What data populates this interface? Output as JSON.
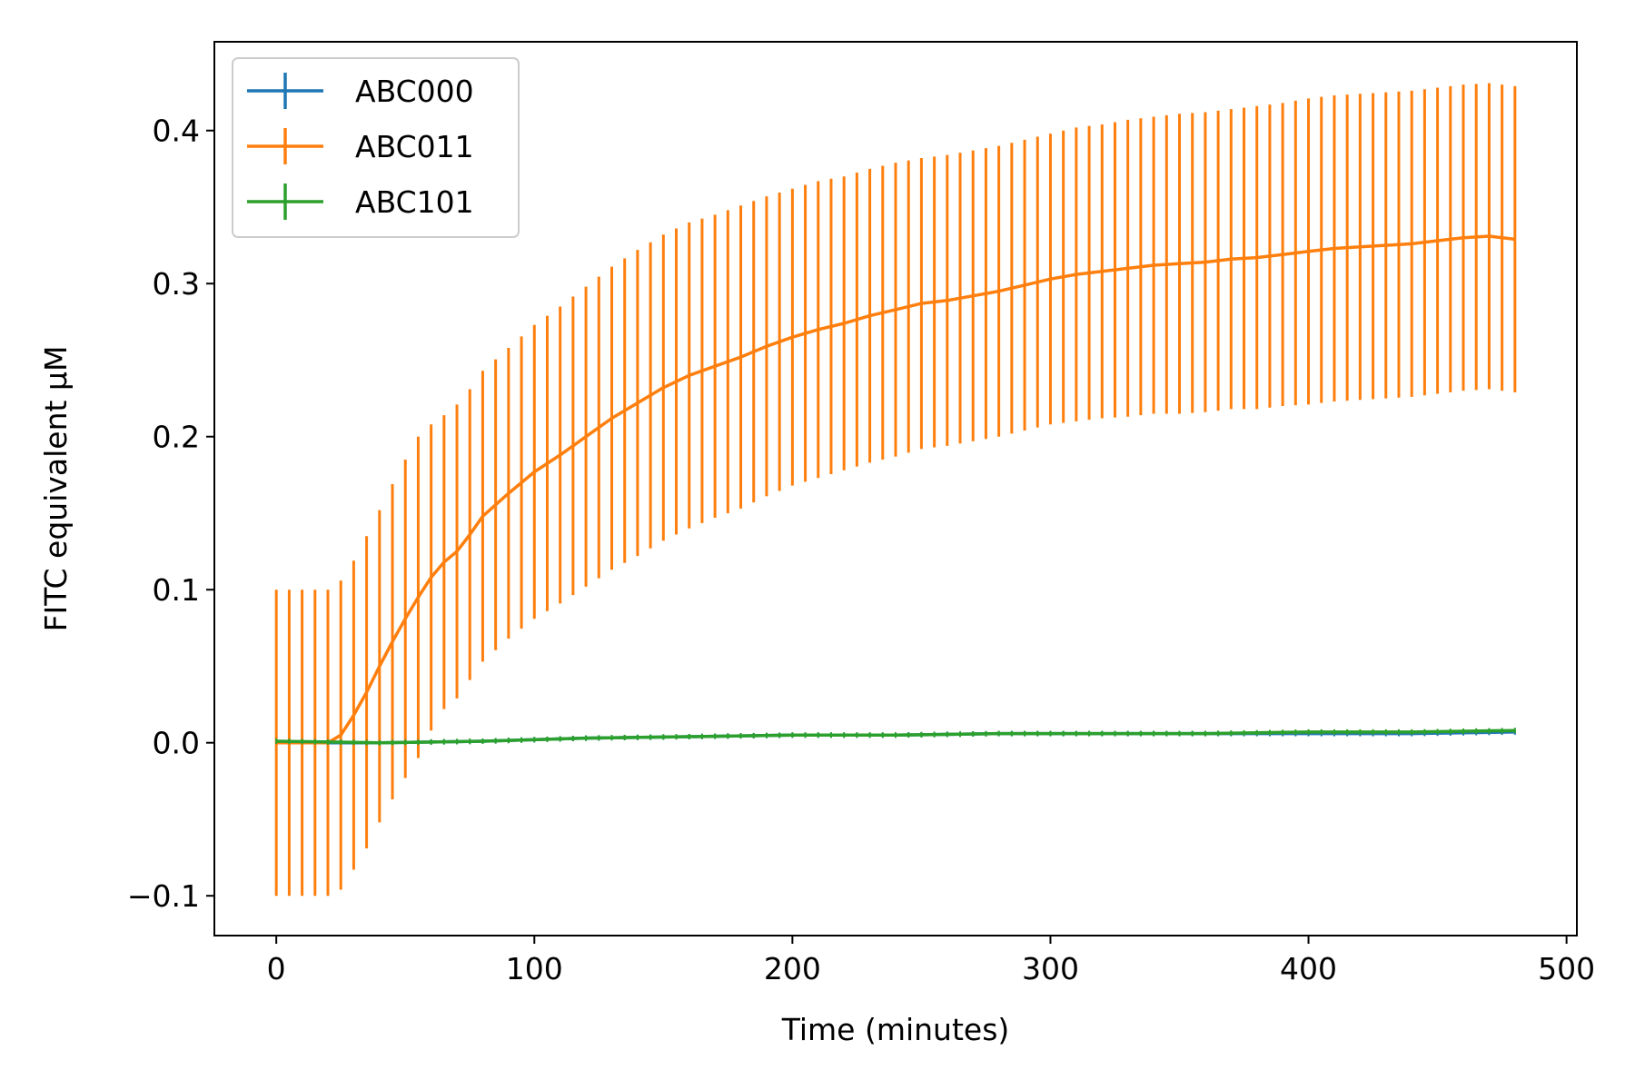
{
  "chart_data": {
    "type": "line",
    "title": "",
    "xlabel": "Time (minutes)",
    "ylabel": "FITC equivalent μM",
    "xlim": [
      -24,
      504
    ],
    "ylim": [
      -0.126,
      0.458
    ],
    "xticks": [
      0,
      100,
      200,
      300,
      400,
      500
    ],
    "yticks": [
      -0.1,
      0.0,
      0.1,
      0.2,
      0.3,
      0.4
    ],
    "xtick_labels": [
      "0",
      "100",
      "200",
      "300",
      "400",
      "500"
    ],
    "ytick_labels": [
      "−0.1",
      "0.0",
      "0.1",
      "0.2",
      "0.3",
      "0.4"
    ],
    "grid": false,
    "legend_position": "upper-left",
    "error_bars": true,
    "series": [
      {
        "name": "ABC000",
        "color": "#1f77b4",
        "x": [
          0,
          40,
          80,
          120,
          160,
          200,
          240,
          280,
          320,
          360,
          400,
          440,
          480
        ],
        "y": [
          0.0,
          0.0,
          0.001,
          0.003,
          0.004,
          0.005,
          0.005,
          0.006,
          0.006,
          0.006,
          0.006,
          0.006,
          0.007
        ]
      },
      {
        "name": "ABC011",
        "color": "#ff7f0e",
        "x": [
          0,
          10,
          20,
          25,
          30,
          35,
          40,
          45,
          50,
          55,
          60,
          65,
          70,
          75,
          80,
          90,
          100,
          110,
          120,
          130,
          140,
          150,
          160,
          170,
          180,
          190,
          200,
          210,
          220,
          230,
          240,
          250,
          260,
          270,
          280,
          290,
          300,
          310,
          320,
          330,
          340,
          350,
          360,
          370,
          380,
          390,
          400,
          410,
          420,
          430,
          440,
          450,
          460,
          470,
          480
        ],
        "y": [
          0.0,
          0.0,
          0.0,
          0.005,
          0.018,
          0.033,
          0.05,
          0.066,
          0.081,
          0.095,
          0.108,
          0.118,
          0.125,
          0.136,
          0.148,
          0.163,
          0.177,
          0.188,
          0.2,
          0.212,
          0.222,
          0.232,
          0.24,
          0.246,
          0.252,
          0.259,
          0.265,
          0.27,
          0.274,
          0.279,
          0.283,
          0.287,
          0.289,
          0.292,
          0.295,
          0.299,
          0.303,
          0.306,
          0.308,
          0.31,
          0.312,
          0.313,
          0.314,
          0.316,
          0.317,
          0.319,
          0.321,
          0.323,
          0.324,
          0.325,
          0.326,
          0.328,
          0.33,
          0.331,
          0.329
        ],
        "error": [
          0.1,
          0.1,
          0.1,
          0.101,
          0.101,
          0.102,
          0.102,
          0.103,
          0.104,
          0.105,
          0.1,
          0.096,
          0.096,
          0.095,
          0.095,
          0.095,
          0.096,
          0.097,
          0.098,
          0.099,
          0.1,
          0.1,
          0.1,
          0.099,
          0.099,
          0.098,
          0.097,
          0.097,
          0.096,
          0.096,
          0.096,
          0.095,
          0.095,
          0.095,
          0.095,
          0.095,
          0.095,
          0.096,
          0.096,
          0.097,
          0.097,
          0.098,
          0.098,
          0.098,
          0.099,
          0.099,
          0.1,
          0.1,
          0.1,
          0.1,
          0.1,
          0.1,
          0.1,
          0.1,
          0.1
        ]
      },
      {
        "name": "ABC101",
        "color": "#2ca02c",
        "x": [
          0,
          40,
          80,
          120,
          160,
          200,
          240,
          280,
          320,
          360,
          400,
          440,
          480
        ],
        "y": [
          0.001,
          0.0,
          0.001,
          0.003,
          0.004,
          0.005,
          0.005,
          0.006,
          0.006,
          0.006,
          0.007,
          0.007,
          0.008
        ]
      }
    ]
  }
}
